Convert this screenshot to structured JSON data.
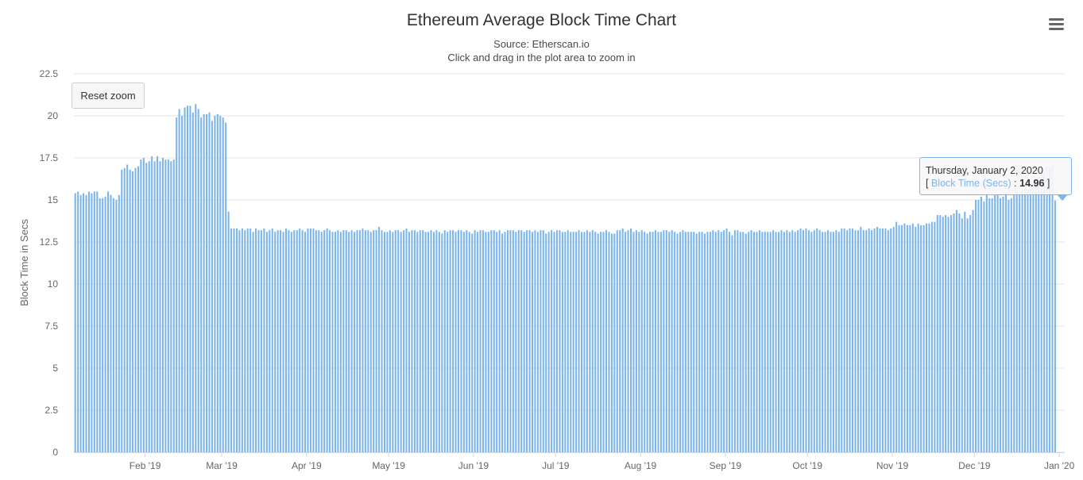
{
  "toolbar": {
    "reset_zoom_label": "Reset zoom",
    "menu_icon": "hamburger-menu-icon"
  },
  "tooltip": {
    "date": "Thursday, January 2, 2020",
    "open_bracket": "[",
    "series_name": "Block Time (Secs)",
    "separator": ":",
    "value": "14.96",
    "close_bracket": "]"
  },
  "colors": {
    "bar": "#7cb5ec",
    "grid": "#e6e6e6",
    "axis_text": "#666666"
  },
  "chart_data": {
    "type": "bar",
    "title": "Ethereum Average Block Time Chart",
    "subtitle": [
      "Source: Etherscan.io",
      "Click and drag in the plot area to zoom in"
    ],
    "xlabel": "",
    "ylabel": "Block Time in Secs",
    "ylim": [
      0,
      22.5
    ],
    "yticks": [
      "0",
      "2.5",
      "5",
      "7.5",
      "10",
      "12.5",
      "15",
      "17.5",
      "20",
      "22.5"
    ],
    "xlim": [
      "2019-01-06",
      "2020-01-03"
    ],
    "xticks": [
      {
        "label": "Feb '19",
        "date": "2019-02-01"
      },
      {
        "label": "Mar '19",
        "date": "2019-03-01"
      },
      {
        "label": "Apr '19",
        "date": "2019-04-01"
      },
      {
        "label": "May '19",
        "date": "2019-05-01"
      },
      {
        "label": "Jun '19",
        "date": "2019-06-01"
      },
      {
        "label": "Jul '19",
        "date": "2019-07-01"
      },
      {
        "label": "Aug '19",
        "date": "2019-08-01"
      },
      {
        "label": "Sep '19",
        "date": "2019-09-01"
      },
      {
        "label": "Oct '19",
        "date": "2019-10-01"
      },
      {
        "label": "Nov '19",
        "date": "2019-11-01"
      },
      {
        "label": "Dec '19",
        "date": "2019-12-01"
      },
      {
        "label": "Jan '20",
        "date": "2020-01-01"
      }
    ],
    "grid": true,
    "legend": "none",
    "series": [
      {
        "name": "Block Time (Secs)",
        "start_date": "2019-01-06",
        "values": [
          15.4,
          15.5,
          15.3,
          15.4,
          15.3,
          15.5,
          15.4,
          15.5,
          15.5,
          15.1,
          15.1,
          15.2,
          15.5,
          15.3,
          15.1,
          15.0,
          15.3,
          16.8,
          16.9,
          17.1,
          16.8,
          16.7,
          16.9,
          17.0,
          17.4,
          17.5,
          17.2,
          17.3,
          17.6,
          17.3,
          17.6,
          17.3,
          17.5,
          17.4,
          17.4,
          17.3,
          17.4,
          19.9,
          20.4,
          20.0,
          20.5,
          20.6,
          20.6,
          20.2,
          20.7,
          20.4,
          19.9,
          20.1,
          20.1,
          20.2,
          19.7,
          20.0,
          20.1,
          20.0,
          19.9,
          19.6,
          14.3,
          13.3,
          13.3,
          13.3,
          13.2,
          13.3,
          13.2,
          13.3,
          13.3,
          13.1,
          13.3,
          13.2,
          13.2,
          13.3,
          13.1,
          13.2,
          13.3,
          13.1,
          13.2,
          13.2,
          13.1,
          13.3,
          13.2,
          13.1,
          13.2,
          13.2,
          13.3,
          13.2,
          13.1,
          13.3,
          13.3,
          13.3,
          13.2,
          13.2,
          13.1,
          13.2,
          13.3,
          13.2,
          13.1,
          13.1,
          13.2,
          13.1,
          13.2,
          13.2,
          13.1,
          13.2,
          13.1,
          13.2,
          13.2,
          13.3,
          13.2,
          13.2,
          13.1,
          13.2,
          13.2,
          13.4,
          13.2,
          13.1,
          13.1,
          13.2,
          13.1,
          13.2,
          13.2,
          13.1,
          13.2,
          13.3,
          13.1,
          13.2,
          13.2,
          13.1,
          13.2,
          13.2,
          13.1,
          13.1,
          13.2,
          13.1,
          13.2,
          13.1,
          13.0,
          13.2,
          13.1,
          13.2,
          13.2,
          13.1,
          13.2,
          13.2,
          13.1,
          13.2,
          13.1,
          13.0,
          13.2,
          13.1,
          13.2,
          13.2,
          13.1,
          13.1,
          13.2,
          13.2,
          13.1,
          13.2,
          13.0,
          13.1,
          13.2,
          13.2,
          13.2,
          13.1,
          13.2,
          13.2,
          13.1,
          13.2,
          13.2,
          13.1,
          13.2,
          13.1,
          13.2,
          13.2,
          13.0,
          13.1,
          13.2,
          13.1,
          13.2,
          13.2,
          13.1,
          13.1,
          13.2,
          13.1,
          13.1,
          13.1,
          13.2,
          13.1,
          13.1,
          13.2,
          13.1,
          13.2,
          13.1,
          13.0,
          13.1,
          13.1,
          13.2,
          13.1,
          13.0,
          13.0,
          13.2,
          13.2,
          13.3,
          13.1,
          13.2,
          13.3,
          13.1,
          13.2,
          13.1,
          13.2,
          13.1,
          13.0,
          13.1,
          13.1,
          13.2,
          13.1,
          13.1,
          13.2,
          13.2,
          13.1,
          13.2,
          13.1,
          13.0,
          13.1,
          13.2,
          13.1,
          13.1,
          13.1,
          13.1,
          13.0,
          13.1,
          13.1,
          13.0,
          13.1,
          13.1,
          13.2,
          13.1,
          13.2,
          13.1,
          13.2,
          13.3,
          13.1,
          12.9,
          13.2,
          13.2,
          13.1,
          13.1,
          13.0,
          13.1,
          13.2,
          13.1,
          13.1,
          13.2,
          13.1,
          13.1,
          13.1,
          13.1,
          13.2,
          13.1,
          13.1,
          13.2,
          13.1,
          13.2,
          13.1,
          13.2,
          13.1,
          13.2,
          13.3,
          13.2,
          13.3,
          13.2,
          13.1,
          13.2,
          13.3,
          13.2,
          13.1,
          13.1,
          13.2,
          13.1,
          13.1,
          13.2,
          13.1,
          13.3,
          13.3,
          13.2,
          13.3,
          13.3,
          13.2,
          13.2,
          13.4,
          13.2,
          13.2,
          13.3,
          13.2,
          13.3,
          13.4,
          13.3,
          13.3,
          13.3,
          13.2,
          13.3,
          13.4,
          13.7,
          13.5,
          13.5,
          13.6,
          13.5,
          13.5,
          13.6,
          13.4,
          13.6,
          13.5,
          13.5,
          13.6,
          13.6,
          13.7,
          13.7,
          14.1,
          14.1,
          14.0,
          14.1,
          14.0,
          14.1,
          14.2,
          14.4,
          14.2,
          13.9,
          14.3,
          13.9,
          14.1,
          14.4,
          15.0,
          15.0,
          15.2,
          14.9,
          15.3,
          15.1,
          15.1,
          15.3,
          15.3,
          15.1,
          15.2,
          15.4,
          15.0,
          15.1,
          15.3,
          15.5,
          15.3,
          15.5,
          15.8,
          15.6,
          16.0,
          15.8,
          15.9,
          16.4,
          16.5,
          16.8,
          17.0,
          16.9,
          17.1,
          14.96
        ]
      }
    ]
  }
}
